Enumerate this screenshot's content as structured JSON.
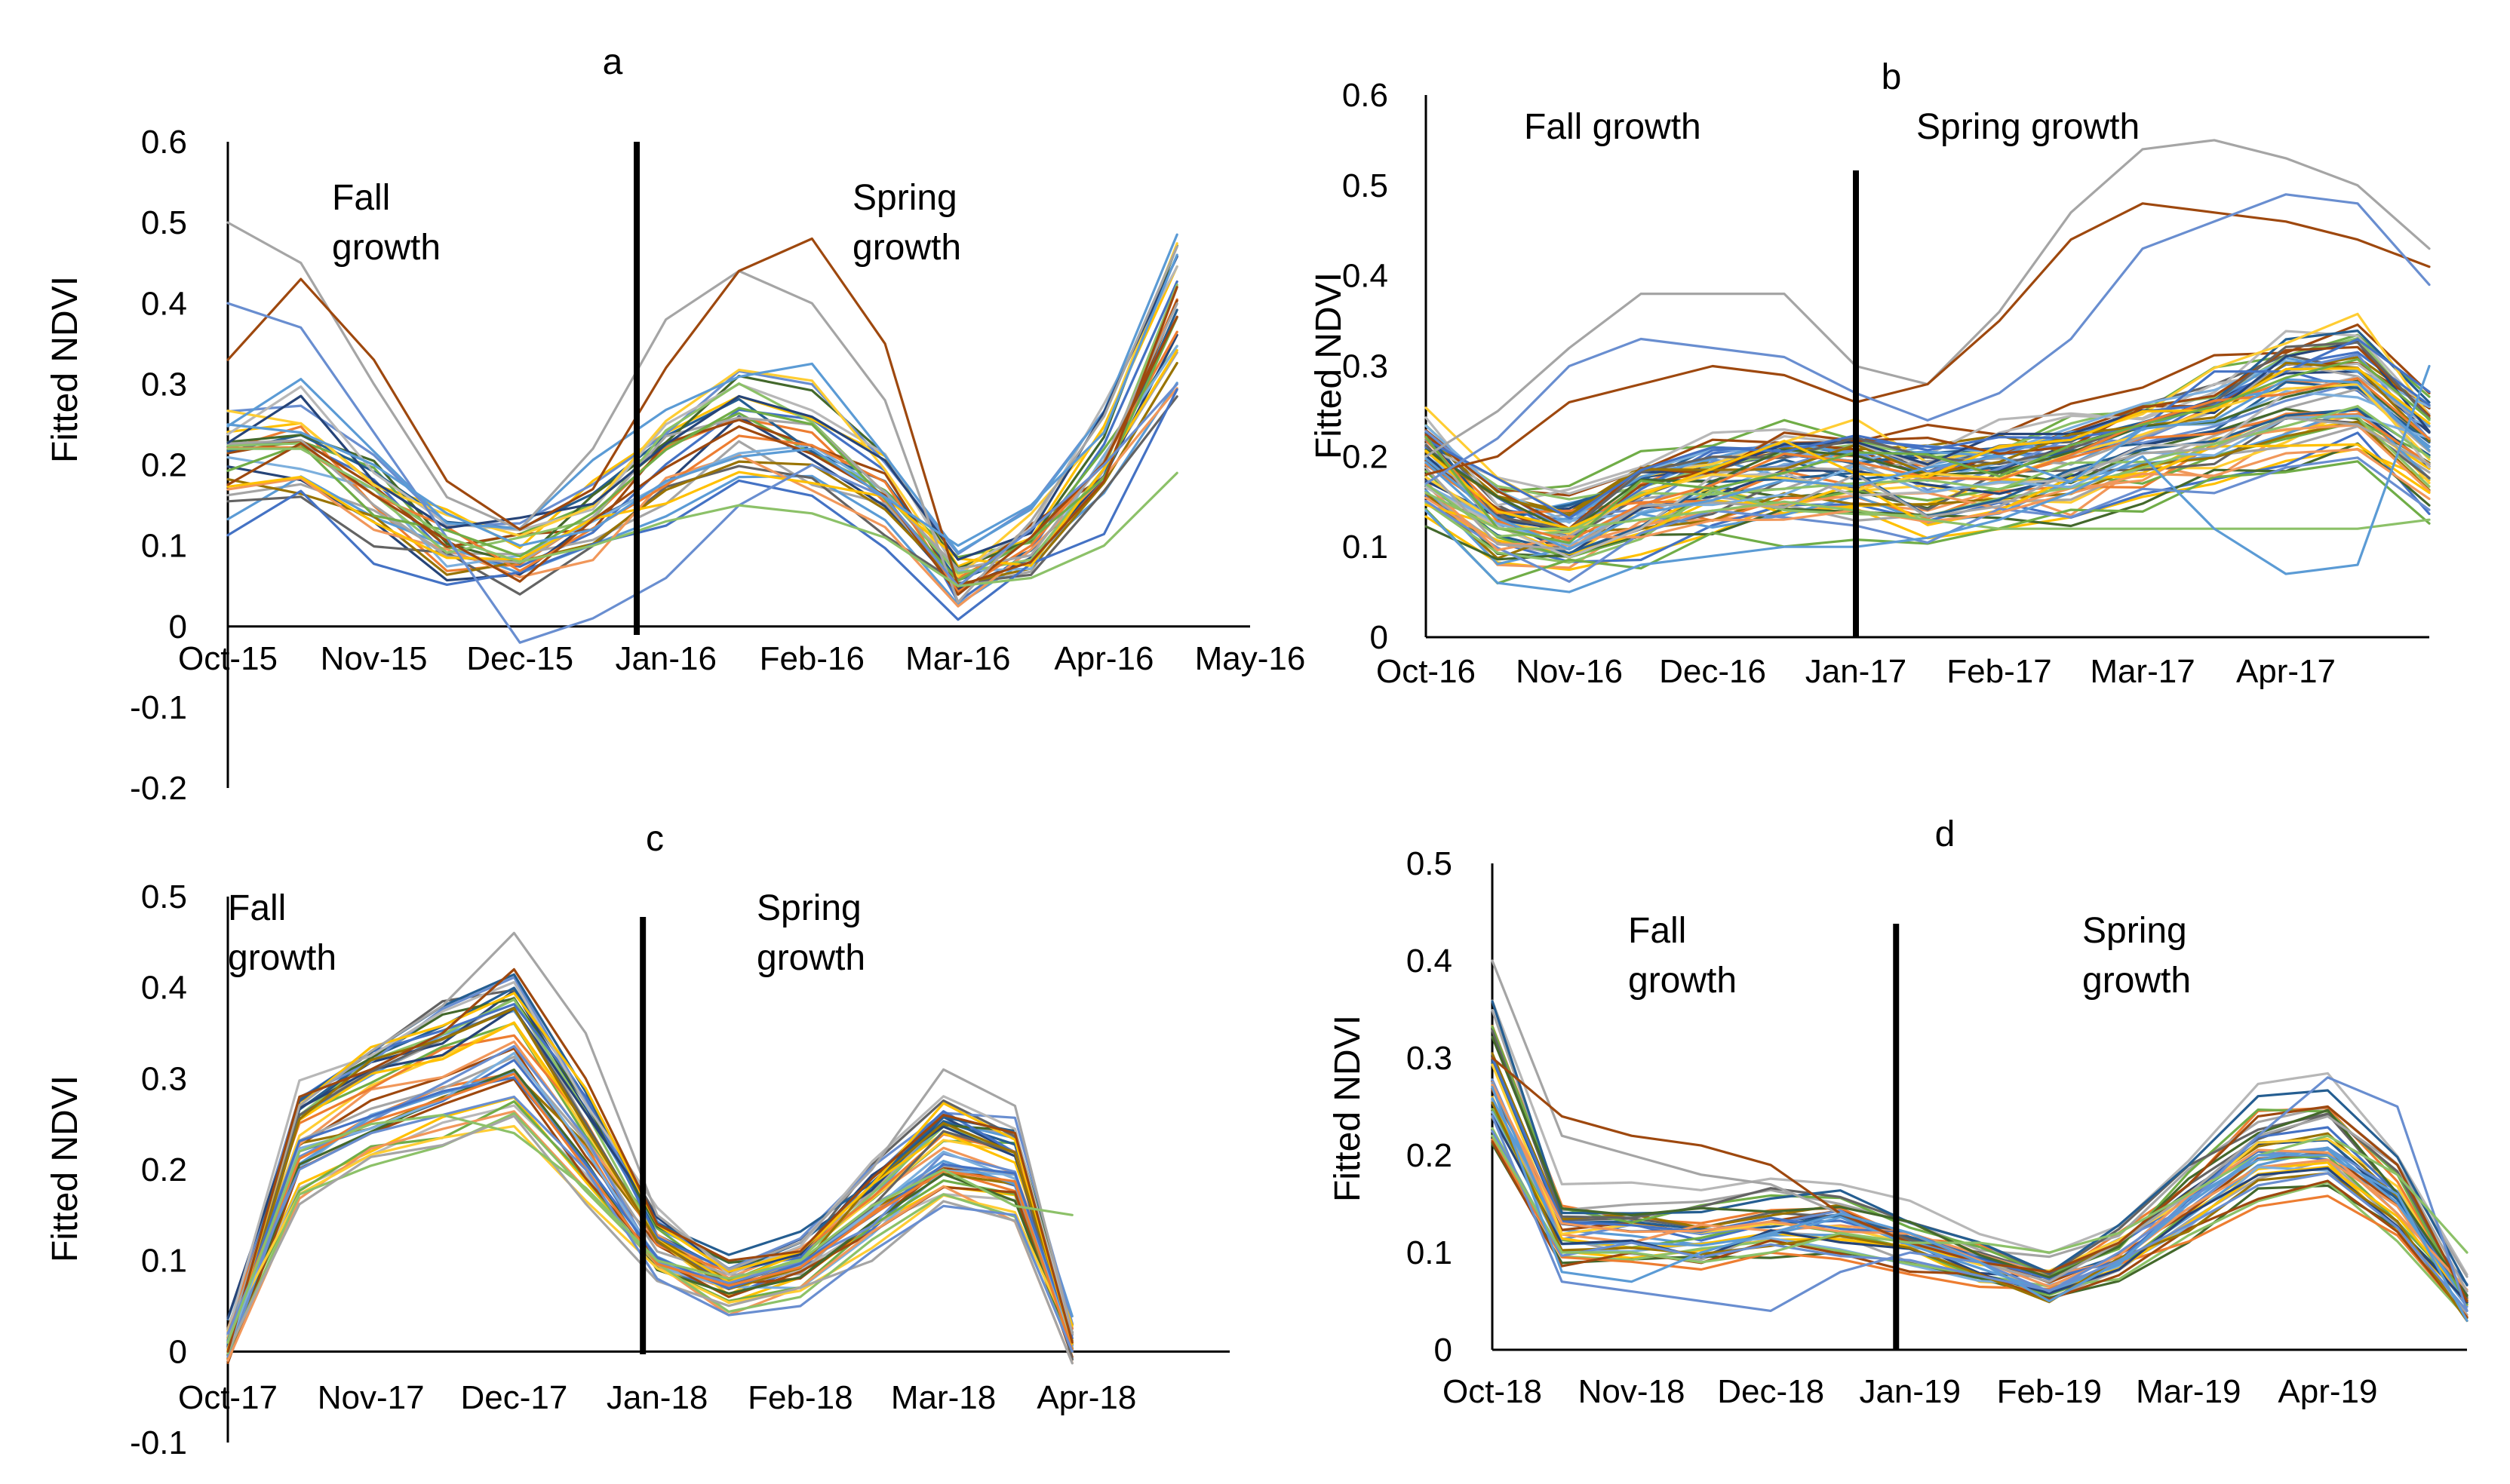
{
  "palette": [
    "#4472C4",
    "#ED7D31",
    "#A5A5A5",
    "#FFC000",
    "#5B9BD5",
    "#70AD47",
    "#264478",
    "#9E480E",
    "#636363",
    "#997300",
    "#255E91",
    "#43682B",
    "#698ED0",
    "#F1975A",
    "#B7B7B7",
    "#FFCD33",
    "#7CAFDD",
    "#8CC168"
  ],
  "panels": [
    {
      "label": "a",
      "ylabel": "Fitted NDVI",
      "annotations": {
        "fall": [
          "Fall",
          "growth"
        ],
        "spring": [
          "Spring",
          "growth"
        ]
      },
      "chart_data": {
        "type": "line",
        "title": "a",
        "ylabel": "Fitted NDVI",
        "categories": [
          "Oct-15",
          "Nov-15",
          "Dec-15",
          "Jan-16",
          "Feb-16",
          "Mar-16",
          "Apr-16",
          "May-16"
        ],
        "yticks": [
          "0.6",
          "0.5",
          "0.4",
          "0.3",
          "0.2",
          "0.1",
          "0",
          "-0.1",
          "-0.2"
        ],
        "ylim": [
          -0.2,
          0.6
        ],
        "xlim": [
          0,
          7
        ],
        "divider_x": 2.8,
        "x": [
          0,
          0.5,
          1,
          1.5,
          2,
          2.5,
          3,
          3.5,
          4,
          4.5,
          5,
          5.5,
          6,
          6.5
        ],
        "template": [
          0.2,
          0.22,
          0.16,
          0.1,
          0.09,
          0.13,
          0.2,
          0.25,
          0.23,
          0.17,
          0.06,
          0.1,
          0.2,
          0.38
        ],
        "series_count": 26,
        "noise": 0.055,
        "series": [
          {
            "name": "s1",
            "values": [
              0.5,
              0.45,
              0.3,
              0.16,
              0.12,
              0.22,
              0.38,
              0.44,
              0.4,
              0.28,
              0.03,
              0.13,
              0.26,
              0.47
            ]
          },
          {
            "name": "s2",
            "values": [
              0.33,
              0.43,
              0.33,
              0.18,
              0.12,
              0.17,
              0.32,
              0.44,
              0.48,
              0.35,
              0.05,
              0.08,
              0.18,
              0.42
            ]
          },
          {
            "name": "s3",
            "values": [
              0.4,
              0.37,
              0.24,
              0.11,
              -0.02,
              0.01,
              0.06,
              0.15,
              0.2,
              0.16,
              0.05,
              0.12,
              0.2,
              0.3
            ]
          },
          {
            "name": "s4",
            "values": [
              0.22,
              0.22,
              0.17,
              0.11,
              0.08,
              0.1,
              0.13,
              0.15,
              0.14,
              0.11,
              0.05,
              0.06,
              0.1,
              0.19
            ]
          },
          {
            "name": "s5",
            "values": [
              0.25,
              0.24,
              0.2,
              0.14,
              0.1,
              0.12,
              0.18,
              0.21,
              0.22,
              0.16,
              0.1,
              0.15,
              0.24,
              0.46
            ]
          }
        ]
      }
    },
    {
      "label": "b",
      "ylabel": "Fitted NDVI",
      "annotations": {
        "fall": [
          "Fall growth"
        ],
        "spring": [
          "Spring growth"
        ]
      },
      "chart_data": {
        "type": "line",
        "title": "b",
        "ylabel": "Fitted NDVI",
        "categories": [
          "Oct-16",
          "Nov-16",
          "Dec-16",
          "Jan-17",
          "Feb-17",
          "Mar-17",
          "Apr-17"
        ],
        "yticks": [
          "0.6",
          "0.5",
          "0.4",
          "0.3",
          "0.2",
          "0.1",
          "0"
        ],
        "ylim": [
          0,
          0.6
        ],
        "xlim": [
          0,
          7
        ],
        "divider_x": 3,
        "x": [
          0,
          0.5,
          1,
          1.5,
          2,
          2.5,
          3,
          3.5,
          4,
          4.5,
          5,
          5.5,
          6,
          6.5,
          7
        ],
        "template": [
          0.18,
          0.12,
          0.11,
          0.14,
          0.16,
          0.17,
          0.17,
          0.16,
          0.17,
          0.18,
          0.2,
          0.22,
          0.25,
          0.26,
          0.2
        ],
        "series_count": 60,
        "noise": 0.045,
        "series": [
          {
            "name": "s1",
            "values": [
              0.2,
              0.25,
              0.32,
              0.38,
              0.38,
              0.38,
              0.3,
              0.28,
              0.36,
              0.47,
              0.54,
              0.55,
              0.53,
              0.5,
              0.43
            ]
          },
          {
            "name": "s2",
            "values": [
              0.18,
              0.2,
              0.26,
              0.28,
              0.3,
              0.29,
              0.26,
              0.28,
              0.35,
              0.44,
              0.48,
              0.47,
              0.46,
              0.44,
              0.41
            ]
          },
          {
            "name": "s3",
            "values": [
              0.17,
              0.22,
              0.3,
              0.33,
              0.32,
              0.31,
              0.27,
              0.24,
              0.27,
              0.33,
              0.43,
              0.46,
              0.49,
              0.48,
              0.39
            ]
          },
          {
            "name": "s4",
            "values": [
              0.16,
              0.12,
              0.12,
              0.13,
              0.14,
              0.15,
              0.14,
              0.13,
              0.12,
              0.12,
              0.12,
              0.12,
              0.12,
              0.12,
              0.13
            ]
          },
          {
            "name": "s5",
            "values": [
              0.14,
              0.06,
              0.05,
              0.08,
              0.09,
              0.1,
              0.1,
              0.11,
              0.13,
              0.16,
              0.2,
              0.12,
              0.07,
              0.08,
              0.3
            ]
          }
        ]
      }
    },
    {
      "label": "c",
      "ylabel": "Fitted NDVI",
      "annotations": {
        "fall": [
          "Fall",
          "growth"
        ],
        "spring": [
          "Spring",
          "growth"
        ]
      },
      "chart_data": {
        "type": "line",
        "title": "c",
        "ylabel": "Fitted NDVI",
        "categories": [
          "Oct-17",
          "Nov-17",
          "Dec-17",
          "Jan-18",
          "Feb-18",
          "Mar-18",
          "Apr-18"
        ],
        "yticks": [
          "0.5",
          "0.4",
          "0.3",
          "0.2",
          "0.1",
          "0",
          "-0.1"
        ],
        "ylim": [
          -0.1,
          0.5
        ],
        "xlim": [
          0,
          7
        ],
        "divider_x": 2.9,
        "x": [
          0,
          0.5,
          1,
          1.5,
          2,
          2.5,
          3,
          3.5,
          4,
          4.5,
          5,
          5.5,
          5.9
        ],
        "template": [
          0.01,
          0.22,
          0.26,
          0.29,
          0.32,
          0.22,
          0.11,
          0.07,
          0.09,
          0.15,
          0.21,
          0.19,
          0.01
        ],
        "series_count": 40,
        "noise": 0.03,
        "series": [
          {
            "name": "s1",
            "values": [
              0.01,
              0.27,
              0.33,
              0.38,
              0.46,
              0.35,
              0.15,
              0.09,
              0.12,
              0.2,
              0.31,
              0.27,
              0.02
            ]
          },
          {
            "name": "s2",
            "values": [
              0.0,
              0.28,
              0.31,
              0.35,
              0.42,
              0.3,
              0.14,
              0.1,
              0.11,
              0.19,
              0.26,
              0.24,
              0.01
            ]
          },
          {
            "name": "s3",
            "values": [
              0.02,
              0.2,
              0.24,
              0.26,
              0.28,
              0.2,
              0.08,
              0.04,
              0.05,
              0.11,
              0.16,
              0.15,
              0.0
            ]
          },
          {
            "name": "s4",
            "values": [
              0.01,
              0.22,
              0.25,
              0.26,
              0.24,
              0.18,
              0.1,
              0.08,
              0.1,
              0.16,
              0.2,
              0.16,
              0.15
            ]
          }
        ]
      }
    },
    {
      "label": "d",
      "ylabel": "Fitted NDVI",
      "annotations": {
        "fall": [
          "Fall",
          "growth"
        ],
        "spring": [
          "Spring",
          "growth"
        ]
      },
      "chart_data": {
        "type": "line",
        "title": "d",
        "ylabel": "Fitted NDVI",
        "categories": [
          "Oct-18",
          "Nov-18",
          "Dec-18",
          "Jan-19",
          "Feb-19",
          "Mar-19",
          "Apr-19"
        ],
        "yticks": [
          "0.5",
          "0.4",
          "0.3",
          "0.2",
          "0.1",
          "0"
        ],
        "ylim": [
          0,
          0.5
        ],
        "xlim": [
          0,
          7
        ],
        "divider_x": 2.9,
        "x": [
          0,
          0.5,
          1,
          1.5,
          2,
          2.5,
          3,
          3.5,
          4,
          4.5,
          5,
          5.5,
          6,
          6.5,
          7
        ],
        "template": [
          0.28,
          0.12,
          0.12,
          0.12,
          0.13,
          0.13,
          0.11,
          0.09,
          0.07,
          0.1,
          0.15,
          0.2,
          0.21,
          0.15,
          0.05
        ],
        "series_count": 32,
        "noise": 0.025,
        "series": [
          {
            "name": "s1",
            "values": [
              0.4,
              0.22,
              0.2,
              0.18,
              0.17,
              0.14,
              0.11,
              0.09,
              0.07,
              0.11,
              0.16,
              0.22,
              0.24,
              0.19,
              0.06
            ]
          },
          {
            "name": "s2",
            "values": [
              0.3,
              0.24,
              0.22,
              0.21,
              0.19,
              0.14,
              0.11,
              0.09,
              0.08,
              0.11,
              0.17,
              0.24,
              0.25,
              0.19,
              0.05
            ]
          },
          {
            "name": "s3",
            "values": [
              0.24,
              0.07,
              0.06,
              0.05,
              0.04,
              0.08,
              0.1,
              0.09,
              0.06,
              0.1,
              0.15,
              0.22,
              0.28,
              0.25,
              0.04
            ]
          },
          {
            "name": "s4",
            "values": [
              0.22,
              0.1,
              0.1,
              0.09,
              0.1,
              0.12,
              0.11,
              0.11,
              0.1,
              0.12,
              0.16,
              0.2,
              0.22,
              0.18,
              0.1
            ]
          },
          {
            "name": "s5",
            "values": [
              0.27,
              0.08,
              0.07,
              0.1,
              0.12,
              0.14,
              0.12,
              0.09,
              0.05,
              0.09,
              0.15,
              0.2,
              0.2,
              0.16,
              0.03
            ]
          }
        ]
      }
    }
  ]
}
